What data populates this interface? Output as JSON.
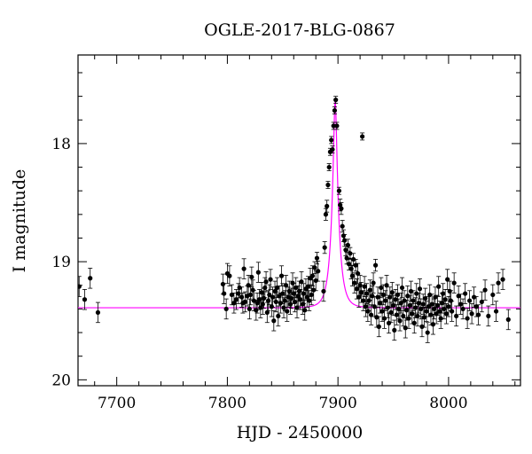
{
  "chart_data": {
    "type": "scatter",
    "title": "OGLE-2017-BLG-0867",
    "xlabel": "HJD - 2450000",
    "ylabel": "I magnitude",
    "xlim": [
      7665,
      8065
    ],
    "ylim": [
      17.25,
      20.05
    ],
    "y_inverted": true,
    "grid": false,
    "x_ticks": [
      7700,
      7800,
      7900,
      8000
    ],
    "x_tick_labels": [
      "7700",
      "7800",
      "7900",
      "8000"
    ],
    "y_ticks": [
      18,
      19,
      20
    ],
    "y_tick_labels": [
      "18",
      "19",
      "20"
    ],
    "colors": {
      "points": "#000000",
      "model": "#ff00ff"
    },
    "model": {
      "name": "",
      "baseline_mag": 19.39,
      "peak_mag": 17.63,
      "t0": 7897.5,
      "tE": 6.5
    },
    "series": [
      {
        "name": "",
        "points": [
          [
            7666,
            19.21
          ],
          [
            7671,
            19.32
          ],
          [
            7676,
            19.14
          ],
          [
            7683,
            19.43
          ],
          [
            7796,
            19.19
          ],
          [
            7797,
            19.27
          ],
          [
            7799,
            19.4
          ],
          [
            7800,
            19.1
          ],
          [
            7802,
            19.12
          ],
          [
            7804,
            19.28
          ],
          [
            7806,
            19.35
          ],
          [
            7808,
            19.32
          ],
          [
            7810,
            19.27
          ],
          [
            7811,
            19.22
          ],
          [
            7813,
            19.3
          ],
          [
            7814,
            19.35
          ],
          [
            7815,
            19.06
          ],
          [
            7816,
            19.34
          ],
          [
            7818,
            19.29
          ],
          [
            7819,
            19.2
          ],
          [
            7820,
            19.4
          ],
          [
            7821,
            19.28
          ],
          [
            7822,
            19.13
          ],
          [
            7823,
            19.24
          ],
          [
            7824,
            19.33
          ],
          [
            7826,
            19.41
          ],
          [
            7827,
            19.35
          ],
          [
            7828,
            19.09
          ],
          [
            7829,
            19.32
          ],
          [
            7830,
            19.39
          ],
          [
            7831,
            19.26
          ],
          [
            7832,
            19.36
          ],
          [
            7833,
            19.31
          ],
          [
            7834,
            19.22
          ],
          [
            7835,
            19.17
          ],
          [
            7836,
            19.43
          ],
          [
            7837,
            19.33
          ],
          [
            7838,
            19.28
          ],
          [
            7839,
            19.15
          ],
          [
            7840,
            19.38
          ],
          [
            7841,
            19.3
          ],
          [
            7842,
            19.5
          ],
          [
            7843,
            19.25
          ],
          [
            7844,
            19.34
          ],
          [
            7845,
            19.22
          ],
          [
            7846,
            19.46
          ],
          [
            7847,
            19.29
          ],
          [
            7848,
            19.35
          ],
          [
            7849,
            19.12
          ],
          [
            7850,
            19.27
          ],
          [
            7851,
            19.39
          ],
          [
            7852,
            19.33
          ],
          [
            7853,
            19.2
          ],
          [
            7854,
            19.42
          ],
          [
            7855,
            19.3
          ],
          [
            7856,
            19.25
          ],
          [
            7857,
            19.36
          ],
          [
            7858,
            19.31
          ],
          [
            7859,
            19.18
          ],
          [
            7860,
            19.27
          ],
          [
            7861,
            19.34
          ],
          [
            7862,
            19.22
          ],
          [
            7863,
            19.39
          ],
          [
            7864,
            19.29
          ],
          [
            7865,
            19.25
          ],
          [
            7866,
            19.32
          ],
          [
            7867,
            19.17
          ],
          [
            7868,
            19.36
          ],
          [
            7869,
            19.27
          ],
          [
            7870,
            19.41
          ],
          [
            7871,
            19.23
          ],
          [
            7872,
            19.3
          ],
          [
            7873,
            19.21
          ],
          [
            7874,
            19.33
          ],
          [
            7875,
            19.14
          ],
          [
            7876,
            19.28
          ],
          [
            7877,
            19.12
          ],
          [
            7878,
            19.24
          ],
          [
            7879,
            19.05
          ],
          [
            7880,
            19.16
          ],
          [
            7881,
            18.97
          ],
          [
            7882,
            19.08
          ],
          [
            7887,
            19.25
          ],
          [
            7888,
            18.88
          ],
          [
            7889,
            18.6
          ],
          [
            7890,
            18.53
          ],
          [
            7891,
            18.35
          ],
          [
            7892,
            18.2
          ],
          [
            7893,
            18.07
          ],
          [
            7894,
            17.97
          ],
          [
            7895,
            18.05
          ],
          [
            7896,
            17.85
          ],
          [
            7897,
            17.72
          ],
          [
            7898,
            17.63
          ],
          [
            7899,
            17.85
          ],
          [
            7901,
            18.4
          ],
          [
            7902,
            18.52
          ],
          [
            7903,
            18.55
          ],
          [
            7904,
            18.7
          ],
          [
            7905,
            18.78
          ],
          [
            7906,
            18.82
          ],
          [
            7907,
            18.9
          ],
          [
            7908,
            18.97
          ],
          [
            7909,
            18.86
          ],
          [
            7910,
            19.02
          ],
          [
            7911,
            18.93
          ],
          [
            7912,
            19.06
          ],
          [
            7913,
            19.12
          ],
          [
            7914,
            18.98
          ],
          [
            7915,
            19.18
          ],
          [
            7916,
            19.03
          ],
          [
            7917,
            19.23
          ],
          [
            7918,
            19.1
          ],
          [
            7919,
            19.3
          ],
          [
            7920,
            19.2
          ],
          [
            7921,
            19.26
          ],
          [
            7922,
            17.94
          ],
          [
            7923,
            19.33
          ],
          [
            7924,
            19.21
          ],
          [
            7925,
            19.38
          ],
          [
            7926,
            19.27
          ],
          [
            7927,
            19.42
          ],
          [
            7928,
            19.33
          ],
          [
            7929,
            19.24
          ],
          [
            7930,
            19.45
          ],
          [
            7931,
            19.29
          ],
          [
            7932,
            19.18
          ],
          [
            7933,
            19.38
          ],
          [
            7934,
            19.03
          ],
          [
            7935,
            19.47
          ],
          [
            7936,
            19.3
          ],
          [
            7937,
            19.55
          ],
          [
            7938,
            19.35
          ],
          [
            7939,
            19.22
          ],
          [
            7940,
            19.42
          ],
          [
            7941,
            19.28
          ],
          [
            7942,
            19.48
          ],
          [
            7943,
            19.33
          ],
          [
            7944,
            19.2
          ],
          [
            7945,
            19.39
          ],
          [
            7946,
            19.52
          ],
          [
            7947,
            19.3
          ],
          [
            7948,
            19.43
          ],
          [
            7949,
            19.26
          ],
          [
            7950,
            19.37
          ],
          [
            7951,
            19.58
          ],
          [
            7952,
            19.32
          ],
          [
            7953,
            19.45
          ],
          [
            7954,
            19.28
          ],
          [
            7955,
            19.4
          ],
          [
            7956,
            19.5
          ],
          [
            7957,
            19.35
          ],
          [
            7958,
            19.22
          ],
          [
            7959,
            19.46
          ],
          [
            7960,
            19.33
          ],
          [
            7961,
            19.56
          ],
          [
            7962,
            19.41
          ],
          [
            7963,
            19.29
          ],
          [
            7964,
            19.48
          ],
          [
            7965,
            19.37
          ],
          [
            7966,
            19.25
          ],
          [
            7967,
            19.44
          ],
          [
            7968,
            19.33
          ],
          [
            7969,
            19.52
          ],
          [
            7970,
            19.39
          ],
          [
            7971,
            19.27
          ],
          [
            7972,
            19.46
          ],
          [
            7973,
            19.35
          ],
          [
            7974,
            19.23
          ],
          [
            7975,
            19.4
          ],
          [
            7976,
            19.55
          ],
          [
            7977,
            19.36
          ],
          [
            7978,
            19.47
          ],
          [
            7979,
            19.31
          ],
          [
            7980,
            19.42
          ],
          [
            7981,
            19.6
          ],
          [
            7982,
            19.38
          ],
          [
            7983,
            19.28
          ],
          [
            7984,
            19.45
          ],
          [
            7985,
            19.36
          ],
          [
            7986,
            19.53
          ],
          [
            7987,
            19.4
          ],
          [
            7988,
            19.3
          ],
          [
            7989,
            19.44
          ],
          [
            7990,
            19.37
          ],
          [
            7991,
            19.21
          ],
          [
            7992,
            19.42
          ],
          [
            7993,
            19.48
          ],
          [
            7994,
            19.35
          ],
          [
            7995,
            19.27
          ],
          [
            7996,
            19.4
          ],
          [
            7997,
            19.32
          ],
          [
            7998,
            19.44
          ],
          [
            7999,
            19.15
          ],
          [
            8000,
            19.38
          ],
          [
            8001,
            19.25
          ],
          [
            8002,
            19.33
          ],
          [
            8003,
            19.42
          ],
          [
            8005,
            19.18
          ],
          [
            8007,
            19.46
          ],
          [
            8009,
            19.29
          ],
          [
            8011,
            19.36
          ],
          [
            8013,
            19.4
          ],
          [
            8015,
            19.27
          ],
          [
            8017,
            19.48
          ],
          [
            8019,
            19.33
          ],
          [
            8021,
            19.44
          ],
          [
            8023,
            19.3
          ],
          [
            8025,
            19.38
          ],
          [
            8027,
            19.45
          ],
          [
            8030,
            19.34
          ],
          [
            8033,
            19.24
          ],
          [
            8036,
            19.46
          ],
          [
            8040,
            19.28
          ],
          [
            8043,
            19.42
          ],
          [
            8045,
            19.18
          ],
          [
            8049,
            19.15
          ],
          [
            8054,
            19.49
          ]
        ]
      }
    ]
  }
}
